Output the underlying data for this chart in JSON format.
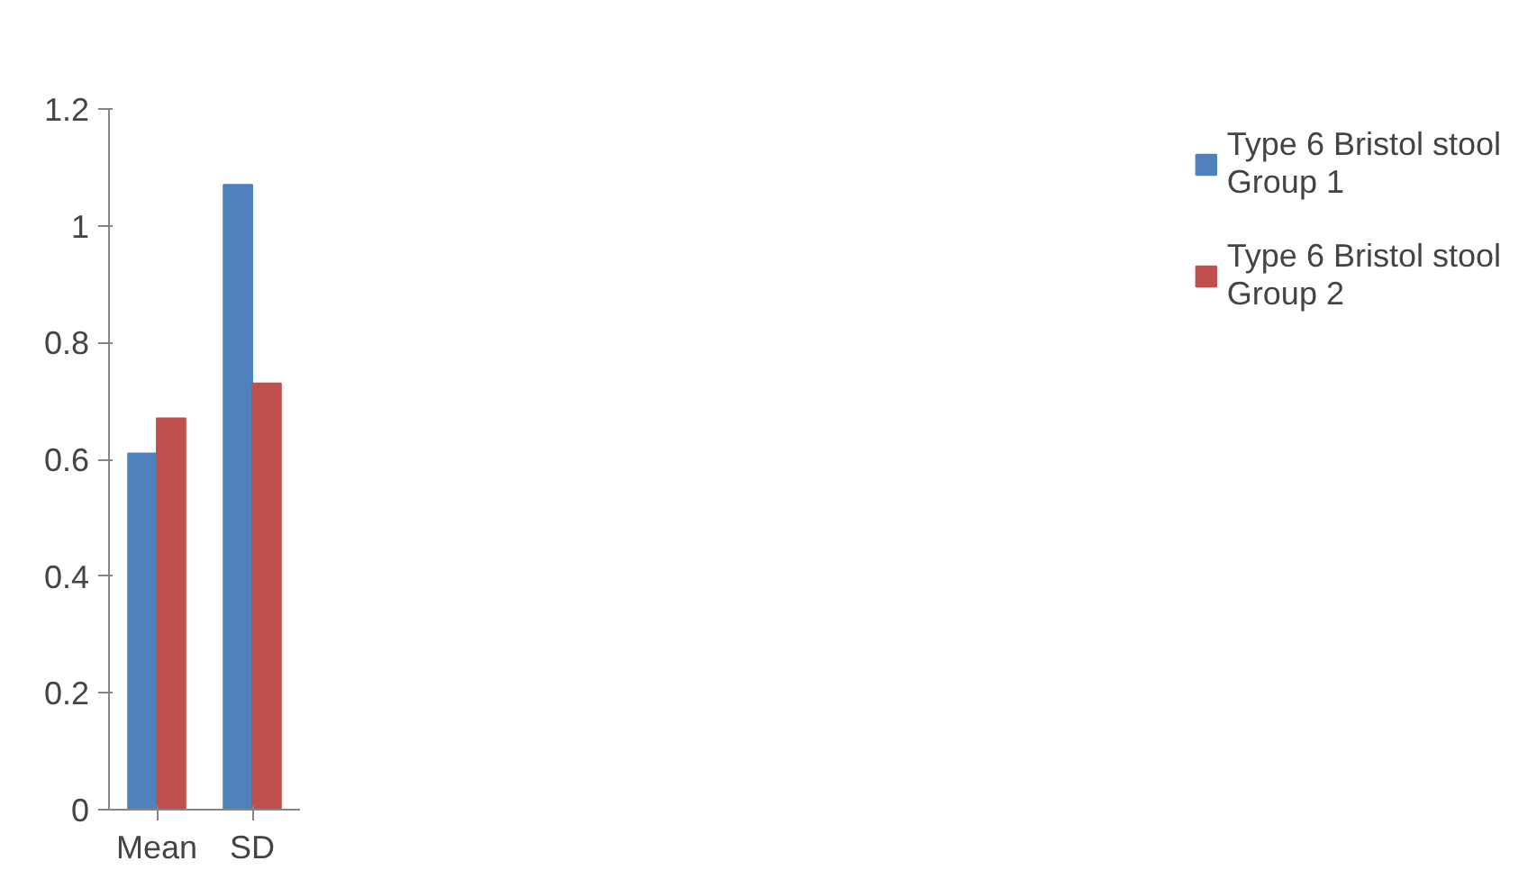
{
  "chart_data": {
    "type": "bar",
    "categories": [
      "Mean",
      "SD"
    ],
    "series": [
      {
        "name": "Type 6 Bristol stool Group 1",
        "color": "#4f81bd",
        "values": [
          0.61,
          1.07
        ]
      },
      {
        "name": "Type 6 Bristol stool Group 2",
        "color": "#c0504d",
        "values": [
          0.67,
          0.73
        ]
      }
    ],
    "ylim": [
      0,
      1.2
    ],
    "yticks": [
      0,
      0.2,
      0.4,
      0.6,
      0.8,
      1,
      1.2
    ],
    "grid": false,
    "legend": "right"
  }
}
